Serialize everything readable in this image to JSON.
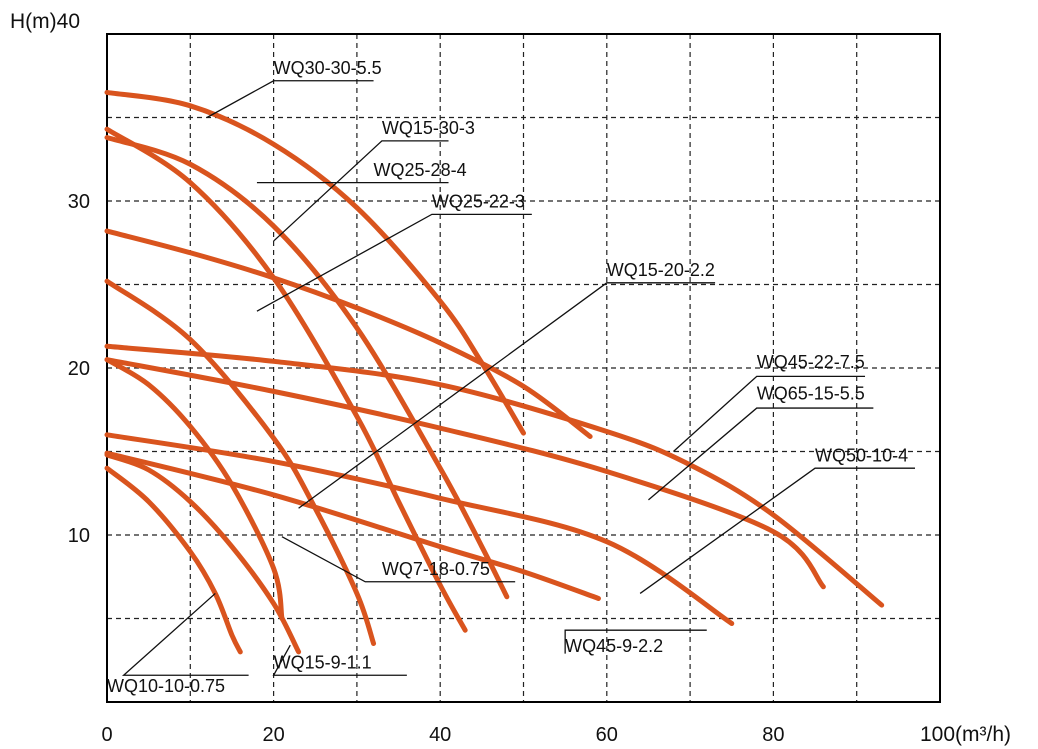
{
  "chart_data": {
    "type": "line",
    "title": "",
    "xlabel": "100(m³/h)",
    "ylabel": "H(m)40",
    "xlim": [
      0,
      100
    ],
    "ylim": [
      0,
      40
    ],
    "x_ticks": [
      "0",
      "20",
      "40",
      "60",
      "80"
    ],
    "y_ticks": [
      "10",
      "20",
      "30"
    ],
    "grid": true,
    "line_color": "#d9541e",
    "series": [
      {
        "name": "WQ30-30-5.5",
        "points": [
          [
            0,
            36.5
          ],
          [
            10,
            35.7
          ],
          [
            20,
            33.4
          ],
          [
            30,
            29.6
          ],
          [
            40,
            24.0
          ],
          [
            45,
            20.3
          ],
          [
            50,
            16.1
          ]
        ]
      },
      {
        "name": "WQ15-30-3",
        "points": [
          [
            0,
            34.3
          ],
          [
            10,
            31.1
          ],
          [
            20,
            25.4
          ],
          [
            30,
            17.1
          ],
          [
            35,
            12.0
          ],
          [
            40,
            7.0
          ],
          [
            43,
            4.3
          ]
        ]
      },
      {
        "name": "WQ25-28-4",
        "points": [
          [
            0,
            33.8
          ],
          [
            10,
            32.2
          ],
          [
            20,
            28.5
          ],
          [
            30,
            22.4
          ],
          [
            40,
            14.0
          ],
          [
            45,
            9.3
          ],
          [
            48,
            6.3
          ]
        ]
      },
      {
        "name": "WQ25-22-3",
        "points": [
          [
            0,
            28.2
          ],
          [
            10,
            26.9
          ],
          [
            20,
            25.4
          ],
          [
            30,
            23.6
          ],
          [
            40,
            21.5
          ],
          [
            50,
            18.9
          ],
          [
            58,
            15.9
          ]
        ]
      },
      {
        "name": "WQ15-20-2.2",
        "points": [
          [
            0,
            25.2
          ],
          [
            10,
            21.7
          ],
          [
            20,
            15.8
          ],
          [
            25,
            11.6
          ],
          [
            30,
            6.5
          ],
          [
            32,
            3.5
          ]
        ]
      },
      {
        "name": "WQ45-22-7.5",
        "points": [
          [
            0,
            21.3
          ],
          [
            20,
            20.4
          ],
          [
            40,
            19.0
          ],
          [
            60,
            16.2
          ],
          [
            70,
            14.2
          ],
          [
            80,
            11.2
          ],
          [
            93,
            5.8
          ]
        ]
      },
      {
        "name": "WQ65-15-5.5",
        "points": [
          [
            0,
            20.5
          ],
          [
            20,
            18.6
          ],
          [
            40,
            16.4
          ],
          [
            60,
            13.8
          ],
          [
            80,
            10.2
          ],
          [
            86,
            6.9
          ]
        ]
      },
      {
        "name": "WQ50-10-4",
        "points": [
          [
            0,
            16.0
          ],
          [
            20,
            14.4
          ],
          [
            40,
            12.2
          ],
          [
            60,
            9.6
          ],
          [
            75,
            4.7
          ]
        ]
      },
      {
        "name": "WQ45-9-2.2",
        "points": [
          [
            0,
            14.9
          ],
          [
            20,
            12.4
          ],
          [
            40,
            9.3
          ],
          [
            50,
            7.8
          ],
          [
            59,
            6.2
          ]
        ]
      },
      {
        "name": "WQ7-18-0.75",
        "points": [
          [
            0,
            20.5
          ],
          [
            5,
            19.0
          ],
          [
            10,
            16.5
          ],
          [
            15,
            13.0
          ],
          [
            20,
            8.0
          ],
          [
            21,
            5.0
          ]
        ]
      },
      {
        "name": "WQ15-9-1.1",
        "points": [
          [
            0,
            14.8
          ],
          [
            5,
            13.9
          ],
          [
            10,
            12.0
          ],
          [
            15,
            9.3
          ],
          [
            20,
            5.9
          ],
          [
            23,
            3.0
          ]
        ]
      },
      {
        "name": "WQ10-10-0.75",
        "points": [
          [
            0,
            14.0
          ],
          [
            5,
            12.0
          ],
          [
            10,
            9.0
          ],
          [
            13,
            6.5
          ],
          [
            15,
            4.0
          ],
          [
            16,
            3.0
          ]
        ]
      }
    ],
    "annotations": [
      {
        "text": "WQ30-30-5.5",
        "leader": [
          [
            12,
            35.0
          ],
          [
            20,
            37.2
          ],
          [
            32,
            37.2
          ]
        ],
        "text_at": [
          20,
          37.6
        ]
      },
      {
        "text": "WQ15-30-3",
        "leader": [
          [
            20,
            27.6
          ],
          [
            33,
            33.6
          ],
          [
            41,
            33.6
          ]
        ],
        "text_at": [
          33,
          34.0
        ]
      },
      {
        "text": "WQ25-28-4",
        "leader": [
          [
            18,
            31.1
          ],
          [
            32,
            31.1
          ],
          [
            41,
            31.1
          ]
        ],
        "text_at": [
          32,
          31.5
        ]
      },
      {
        "text": "WQ25-22-3",
        "leader": [
          [
            18,
            23.4
          ],
          [
            39,
            29.2
          ],
          [
            51,
            29.2
          ]
        ],
        "text_at": [
          39,
          29.6
        ]
      },
      {
        "text": "WQ15-20-2.2",
        "leader": [
          [
            23,
            11.6
          ],
          [
            60,
            25.1
          ],
          [
            73,
            25.1
          ]
        ],
        "text_at": [
          60,
          25.5
        ]
      },
      {
        "text": "WQ45-22-7.5",
        "leader": [
          [
            68,
            15.0
          ],
          [
            78,
            19.5
          ],
          [
            91,
            19.5
          ]
        ],
        "text_at": [
          78,
          20.0
        ]
      },
      {
        "text": "WQ65-15-5.5",
        "leader": [
          [
            65,
            12.1
          ],
          [
            78,
            17.6
          ],
          [
            92,
            17.6
          ]
        ],
        "text_at": [
          78,
          18.1
        ]
      },
      {
        "text": "WQ50-10-4",
        "leader": [
          [
            64,
            6.5
          ],
          [
            85,
            14.0
          ],
          [
            97,
            14.0
          ]
        ],
        "text_at": [
          85,
          14.4
        ]
      },
      {
        "text": "WQ7-18-0.75",
        "leader": [
          [
            21,
            9.9
          ],
          [
            31,
            7.2
          ],
          [
            49,
            7.2
          ]
        ],
        "text_at": [
          33,
          7.6
        ]
      },
      {
        "text": "WQ45-9-2.2",
        "leader": [
          [
            55,
            2.9
          ],
          [
            55,
            4.3
          ],
          [
            72,
            4.3
          ]
        ],
        "text_at": [
          55,
          3.0
        ]
      },
      {
        "text": "WQ15-9-1.1",
        "leader": [
          [
            22,
            3.4
          ],
          [
            20,
            1.6
          ],
          [
            36,
            1.6
          ]
        ],
        "text_at": [
          20,
          2.0
        ]
      },
      {
        "text": "WQ10-10-0.75",
        "leader": [
          [
            13,
            6.5
          ],
          [
            2,
            1.6
          ],
          [
            17,
            1.6
          ]
        ],
        "text_at": [
          0,
          0.6
        ]
      }
    ]
  }
}
